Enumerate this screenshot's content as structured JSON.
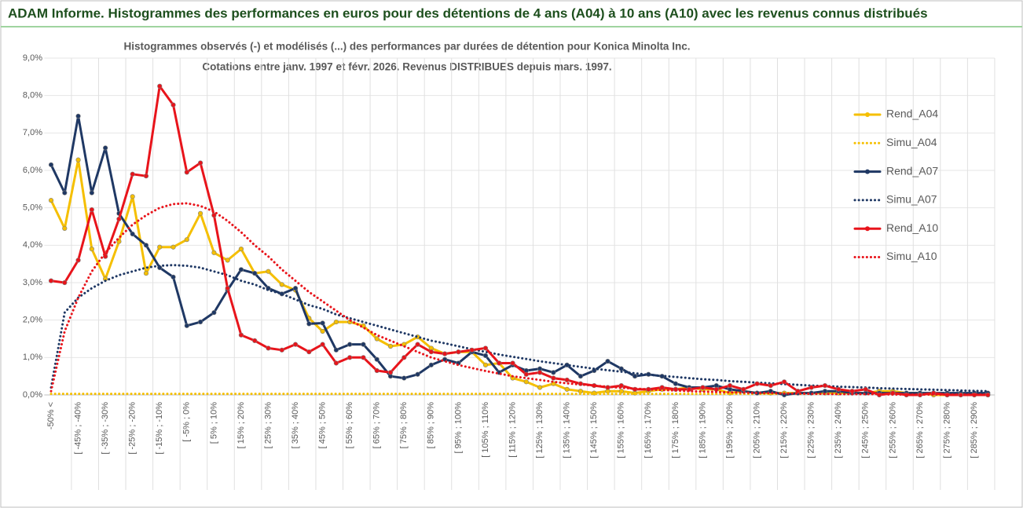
{
  "chart_data": {
    "type": "line",
    "title": "ADAM Informe. Histogrammes des performances en euros pour des détentions de 4 ans (A04) à 10 ans (A10) avec les revenus connus distribués",
    "subtitle": [
      "Histogrammes observés (-) et modélisés (...) des performances par durées de détention pour Konica Minolta Inc.",
      "Cotations entre janv. 1997 et févr. 2026. Revenus DISTRIBUES depuis mars. 1997."
    ],
    "categories": [
      "-50% <",
      null,
      "[ -45% ; -40%",
      null,
      "[ -35% ; -30%",
      null,
      "[ -25% ; -20%",
      null,
      "[ -15% ; -10%",
      null,
      "[ -5% ; 0%",
      null,
      "[ 5% ; 10%",
      null,
      "[ 15% ; 20%",
      null,
      "[ 25% ; 30%",
      null,
      "[ 35% ; 40%",
      null,
      "[ 45% ; 50%",
      null,
      "[ 55% ; 60%",
      null,
      "[ 65% ; 70%",
      null,
      "[ 75% ; 80%",
      null,
      "[ 85% ; 90%",
      null,
      "[ 95% ; 100%",
      null,
      "[ 105% ; 110%",
      null,
      "[ 115% ; 120%",
      null,
      "[ 125% ; 130%",
      null,
      "[ 135% ; 140%",
      null,
      "[ 145% ; 150%",
      null,
      "[ 155% ; 160%",
      null,
      "[ 165% ; 170%",
      null,
      "[ 175% ; 180%",
      null,
      "[ 185% ; 190%",
      null,
      "[ 195% ; 200%",
      null,
      "[ 205% ; 210%",
      null,
      "[ 215% ; 220%",
      null,
      "[ 225% ; 230%",
      null,
      "[ 235% ; 240%",
      null,
      "[ 245% ; 250%",
      null,
      "[ 255% ; 260%",
      null,
      "[ 265% ; 270%",
      null,
      "[ 275% ; 280%",
      null,
      "[ 285% ; 290%",
      null
    ],
    "series": [
      {
        "name": "Rend_A04",
        "color": "#f5bf00",
        "style": "solid",
        "values": [
          5.2,
          4.45,
          6.28,
          3.9,
          3.1,
          4.1,
          5.3,
          3.25,
          3.95,
          3.95,
          4.15,
          4.85,
          3.8,
          3.6,
          3.9,
          3.25,
          3.3,
          2.95,
          2.8,
          2.05,
          1.7,
          1.95,
          1.95,
          1.85,
          1.5,
          1.3,
          1.35,
          1.55,
          1.25,
          1.1,
          1.15,
          1.15,
          0.8,
          0.85,
          0.45,
          0.35,
          0.2,
          0.3,
          0.15,
          0.1,
          0.05,
          0.1,
          0.1,
          0.05,
          0.1,
          0.15,
          0.15,
          0.2,
          0.15,
          0.15,
          0.05,
          0.1,
          0.05,
          0.05,
          0.05,
          0.05,
          0.05,
          0.05,
          0.05,
          0.05,
          0.05,
          0.1,
          0.1,
          0.05,
          0.05,
          0,
          0,
          0,
          0,
          0
        ]
      },
      {
        "name": "Simu_A04",
        "color": "#f5bf00",
        "style": "dotted",
        "values": [
          0.03,
          0.03,
          0.03,
          0.03,
          0.03,
          0.03,
          0.03,
          0.03,
          0.03,
          0.03,
          0.03,
          0.03,
          0.03,
          0.03,
          0.03,
          0.03,
          0.03,
          0.03,
          0.03,
          0.03,
          0.03,
          0.03,
          0.03,
          0.03,
          0.03,
          0.03,
          0.03,
          0.03,
          0.03,
          0.03,
          0.03,
          0.03,
          0.03,
          0.03,
          0.03,
          0.03,
          0.03,
          0.03,
          0.03,
          0.03,
          0.03,
          0.03,
          0.03,
          0.03,
          0.03,
          0.03,
          0.03,
          0.03,
          0.03,
          0.03,
          0.03,
          0.03,
          0.03,
          0.03,
          0.03,
          0.03,
          0.03,
          0.03,
          0.03,
          0.03,
          0.03,
          0.03,
          0.03,
          0.03,
          0.03,
          0.03,
          0.03,
          0.03,
          0.03,
          0.03
        ]
      },
      {
        "name": "Rend_A07",
        "color": "#1f3864",
        "style": "solid",
        "values": [
          6.15,
          5.4,
          7.45,
          5.4,
          6.6,
          4.85,
          4.3,
          4.0,
          3.4,
          3.15,
          1.85,
          1.95,
          2.2,
          2.8,
          3.35,
          3.25,
          2.85,
          2.7,
          2.85,
          1.9,
          1.92,
          1.2,
          1.35,
          1.35,
          0.95,
          0.5,
          0.45,
          0.55,
          0.8,
          0.95,
          0.85,
          1.15,
          1.05,
          0.6,
          0.8,
          0.65,
          0.7,
          0.6,
          0.8,
          0.5,
          0.65,
          0.9,
          0.7,
          0.5,
          0.55,
          0.5,
          0.3,
          0.2,
          0.2,
          0.25,
          0.15,
          0.1,
          0.05,
          0.1,
          0,
          0.05,
          0.05,
          0.1,
          0.1,
          0.05,
          0.05,
          0.05,
          0.05,
          0.05,
          0.05,
          0.05,
          0.05,
          0.05,
          0.05,
          0.05
        ]
      },
      {
        "name": "Simu_A07",
        "color": "#1f3864",
        "style": "dotted",
        "values": [
          0.2,
          2.2,
          2.6,
          2.85,
          3.05,
          3.2,
          3.3,
          3.4,
          3.45,
          3.47,
          3.45,
          3.4,
          3.3,
          3.2,
          3.05,
          2.95,
          2.8,
          2.7,
          2.55,
          2.4,
          2.3,
          2.15,
          2.05,
          1.95,
          1.85,
          1.75,
          1.65,
          1.55,
          1.45,
          1.38,
          1.3,
          1.22,
          1.15,
          1.08,
          1.02,
          0.96,
          0.9,
          0.85,
          0.8,
          0.75,
          0.7,
          0.66,
          0.62,
          0.58,
          0.54,
          0.51,
          0.48,
          0.45,
          0.42,
          0.4,
          0.37,
          0.35,
          0.33,
          0.31,
          0.29,
          0.27,
          0.25,
          0.24,
          0.22,
          0.21,
          0.2,
          0.18,
          0.17,
          0.16,
          0.15,
          0.14,
          0.13,
          0.12,
          0.11,
          0.1
        ]
      },
      {
        "name": "Rend_A10",
        "color": "#e8141b",
        "style": "solid",
        "values": [
          3.05,
          3.0,
          3.6,
          4.95,
          3.7,
          4.7,
          5.9,
          5.85,
          8.25,
          7.75,
          5.95,
          6.2,
          4.8,
          2.85,
          1.6,
          1.45,
          1.25,
          1.2,
          1.35,
          1.15,
          1.35,
          0.85,
          1.0,
          1.0,
          0.65,
          0.6,
          1.0,
          1.35,
          1.15,
          1.1,
          1.15,
          1.2,
          1.25,
          0.85,
          0.85,
          0.55,
          0.6,
          0.45,
          0.4,
          0.3,
          0.25,
          0.2,
          0.25,
          0.15,
          0.15,
          0.2,
          0.15,
          0.15,
          0.2,
          0.15,
          0.25,
          0.15,
          0.3,
          0.25,
          0.35,
          0.1,
          0.2,
          0.25,
          0.15,
          0.1,
          0.15,
          0,
          0.05,
          0,
          0,
          0.05,
          0,
          0,
          0,
          0
        ]
      },
      {
        "name": "Simu_A10",
        "color": "#e8141b",
        "style": "dotted",
        "values": [
          0.1,
          1.7,
          2.6,
          3.3,
          3.8,
          4.2,
          4.55,
          4.8,
          5.0,
          5.1,
          5.12,
          5.05,
          4.9,
          4.65,
          4.35,
          4.0,
          3.7,
          3.35,
          3.05,
          2.75,
          2.5,
          2.25,
          2.0,
          1.8,
          1.6,
          1.45,
          1.3,
          1.15,
          1.0,
          0.9,
          0.8,
          0.72,
          0.64,
          0.57,
          0.5,
          0.45,
          0.4,
          0.35,
          0.31,
          0.28,
          0.25,
          0.22,
          0.19,
          0.17,
          0.15,
          0.13,
          0.12,
          0.1,
          0.09,
          0.08,
          0.07,
          0.06,
          0.05,
          0.05,
          0.04,
          0.04,
          0.03,
          0.03,
          0.02,
          0.02,
          0.02,
          0.02,
          0.01,
          0.01,
          0.01,
          0.01,
          0.01,
          0.01,
          0.01,
          0.01
        ]
      }
    ],
    "ylim": [
      0,
      9
    ],
    "yticks": [
      {
        "value": 0,
        "label": "0,0%"
      },
      {
        "value": 1,
        "label": "1,0%"
      },
      {
        "value": 2,
        "label": "2,0%"
      },
      {
        "value": 3,
        "label": "3,0%"
      },
      {
        "value": 4,
        "label": "4,0%"
      },
      {
        "value": 5,
        "label": "5,0%"
      },
      {
        "value": 6,
        "label": "6,0%"
      },
      {
        "value": 7,
        "label": "7,0%"
      },
      {
        "value": 8,
        "label": "8,0%"
      },
      {
        "value": 9,
        "label": "9,0%"
      }
    ],
    "grid": true,
    "legend": "right"
  }
}
